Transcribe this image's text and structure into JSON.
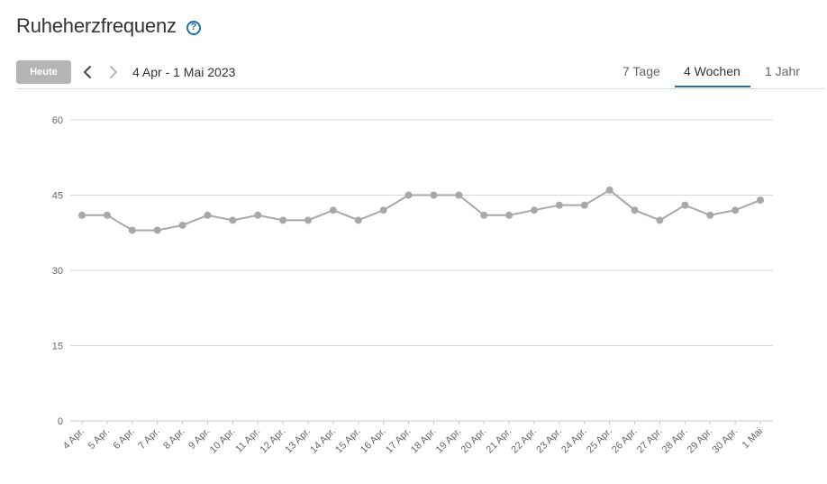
{
  "header": {
    "title": "Ruheherzfrequenz",
    "help_icon": "question-circle-icon"
  },
  "toolbar": {
    "today_label": "Heute",
    "prev_icon": "chevron-left-icon",
    "next_icon": "chevron-right-icon",
    "date_range": "4 Apr - 1 Mai 2023"
  },
  "tabs": [
    {
      "label": "7 Tage",
      "active": false
    },
    {
      "label": "4 Wochen",
      "active": true
    },
    {
      "label": "1 Jahr",
      "active": false
    }
  ],
  "colors": {
    "accent": "#1a6fb3",
    "series": "#a8a8a8",
    "grid": "#d9d9d9"
  },
  "chart_data": {
    "type": "line",
    "title": "",
    "xlabel": "",
    "ylabel": "",
    "ylim": [
      0,
      60
    ],
    "yticks": [
      0,
      15,
      30,
      45,
      60
    ],
    "grid": true,
    "categories": [
      "4 Apr.",
      "5 Apr.",
      "6 Apr.",
      "7 Apr.",
      "8 Apr.",
      "9 Apr.",
      "10 Apr.",
      "11 Apr.",
      "12 Apr.",
      "13 Apr.",
      "14 Apr.",
      "15 Apr.",
      "16 Apr.",
      "17 Apr.",
      "18 Apr.",
      "19 Apr.",
      "20 Apr.",
      "21 Apr.",
      "22 Apr.",
      "23 Apr.",
      "24 Apr.",
      "25 Apr.",
      "26 Apr.",
      "27 Apr.",
      "28 Apr.",
      "29 Apr.",
      "30 Apr.",
      "1 Mai"
    ],
    "series": [
      {
        "values": [
          41,
          41,
          38,
          38,
          39,
          41,
          40,
          41,
          40,
          40,
          42,
          40,
          42,
          45,
          45,
          45,
          41,
          41,
          42,
          43,
          43,
          46,
          42,
          40,
          43,
          41,
          42,
          44
        ]
      }
    ]
  }
}
